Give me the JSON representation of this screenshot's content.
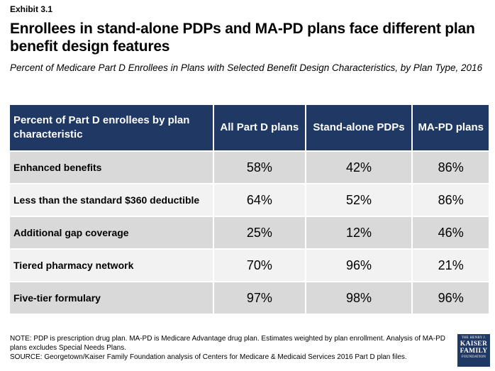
{
  "exhibit_label": "Exhibit 3.1",
  "title": "Enrollees in stand-alone PDPs and MA-PD plans face different plan benefit design features",
  "subtitle": "Percent of Medicare Part D Enrollees in Plans with Selected Benefit Design Characteristics, by Plan Type, 2016",
  "table": {
    "header": {
      "label": "Percent of Part D enrollees by plan characteristic",
      "columns": [
        "All Part D plans",
        "Stand-alone PDPs",
        "MA-PD plans"
      ]
    },
    "rows": [
      {
        "label": "Enhanced benefits",
        "values": [
          "58%",
          "42%",
          "86%"
        ]
      },
      {
        "label": "Less than the standard $360 deductible",
        "values": [
          "64%",
          "52%",
          "86%"
        ]
      },
      {
        "label": "Additional gap coverage",
        "values": [
          "25%",
          "12%",
          "46%"
        ]
      },
      {
        "label": "Tiered pharmacy network",
        "values": [
          "70%",
          "96%",
          "21%"
        ]
      },
      {
        "label": "Five-tier formulary",
        "values": [
          "97%",
          "98%",
          "96%"
        ]
      }
    ]
  },
  "footnotes": {
    "note": "NOTE: PDP is prescription drug plan. MA-PD is Medicare Advantage drug plan. Estimates weighted by plan enrollment. Analysis of MA-PD plans excludes Special Needs Plans.",
    "source": "SOURCE: Georgetown/Kaiser Family Foundation analysis of Centers for Medicare & Medicaid Services 2016 Part D plan files."
  },
  "logo": {
    "line1": "THE HENRY J.",
    "line2": "KAISER",
    "line3": "FAMILY",
    "line4": "FOUNDATION"
  }
}
